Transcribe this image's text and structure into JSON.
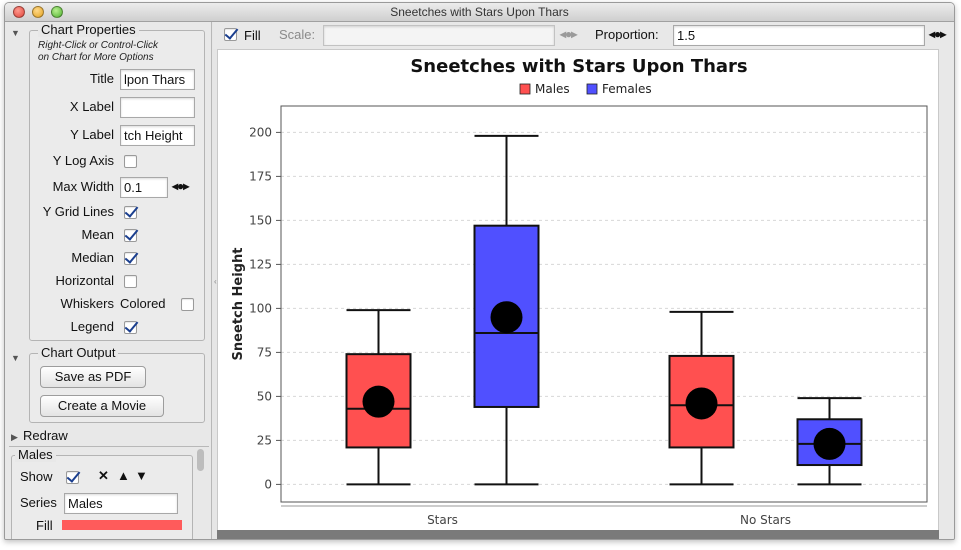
{
  "window": {
    "title": "Sneetches with Stars Upon Thars"
  },
  "sidebar": {
    "chart_properties": {
      "title": "Chart Properties",
      "hint_line1": "Right-Click or Control-Click",
      "hint_line2": "on Chart for More Options",
      "title_label": "Title",
      "title_value": "lpon Thars",
      "xlabel_label": "X Label",
      "xlabel_value": "",
      "ylabel_label": "Y Label",
      "ylabel_value": "tch Height",
      "ylog_label": "Y Log Axis",
      "ylog_checked": false,
      "maxwidth_label": "Max Width",
      "maxwidth_value": "0.1",
      "ygrid_label": "Y Grid Lines",
      "ygrid_checked": true,
      "mean_label": "Mean",
      "mean_checked": true,
      "median_label": "Median",
      "median_checked": true,
      "horizontal_label": "Horizontal",
      "horizontal_checked": false,
      "whiskers_label": "Whiskers",
      "colored_label": "Colored",
      "colored_checked": false,
      "legend_label": "Legend",
      "legend_checked": true
    },
    "chart_output": {
      "title": "Chart Output",
      "save_pdf_label": "Save as PDF",
      "movie_label": "Create a Movie"
    },
    "redraw_label": "Redraw",
    "males_panel": {
      "title": "Males",
      "show_label": "Show",
      "show_checked": true,
      "series_label": "Series",
      "series_value": "Males",
      "fill_label": "Fill",
      "fill_color": "#ff5b5b"
    }
  },
  "toolbar": {
    "fill_label": "Fill",
    "fill_checked": true,
    "scale_label": "Scale:",
    "scale_value": "",
    "proportion_label": "Proportion:",
    "proportion_value": "1.5"
  },
  "chart_data": {
    "type": "box",
    "title": "Sneetches with Stars Upon Thars",
    "xlabel": "",
    "ylabel": "Sneetch Height",
    "ylim": [
      -10,
      215
    ],
    "yticks": [
      0,
      25,
      50,
      75,
      100,
      125,
      150,
      175,
      200
    ],
    "grid": true,
    "legend_position": "top-center",
    "categories": [
      "Stars",
      "No Stars"
    ],
    "series": [
      {
        "name": "Males",
        "color": "#ff5050",
        "boxes": [
          {
            "min": 0,
            "q1": 21,
            "median": 43,
            "mean": 47,
            "q3": 74,
            "max": 99
          },
          {
            "min": 0,
            "q1": 21,
            "median": 45,
            "mean": 46,
            "q3": 73,
            "max": 98
          }
        ]
      },
      {
        "name": "Females",
        "color": "#5050ff",
        "boxes": [
          {
            "min": 0,
            "q1": 44,
            "median": 86,
            "mean": 95,
            "q3": 147,
            "max": 198
          },
          {
            "min": 0,
            "q1": 11,
            "median": 23,
            "mean": 23,
            "q3": 37,
            "max": 49
          }
        ]
      }
    ]
  }
}
